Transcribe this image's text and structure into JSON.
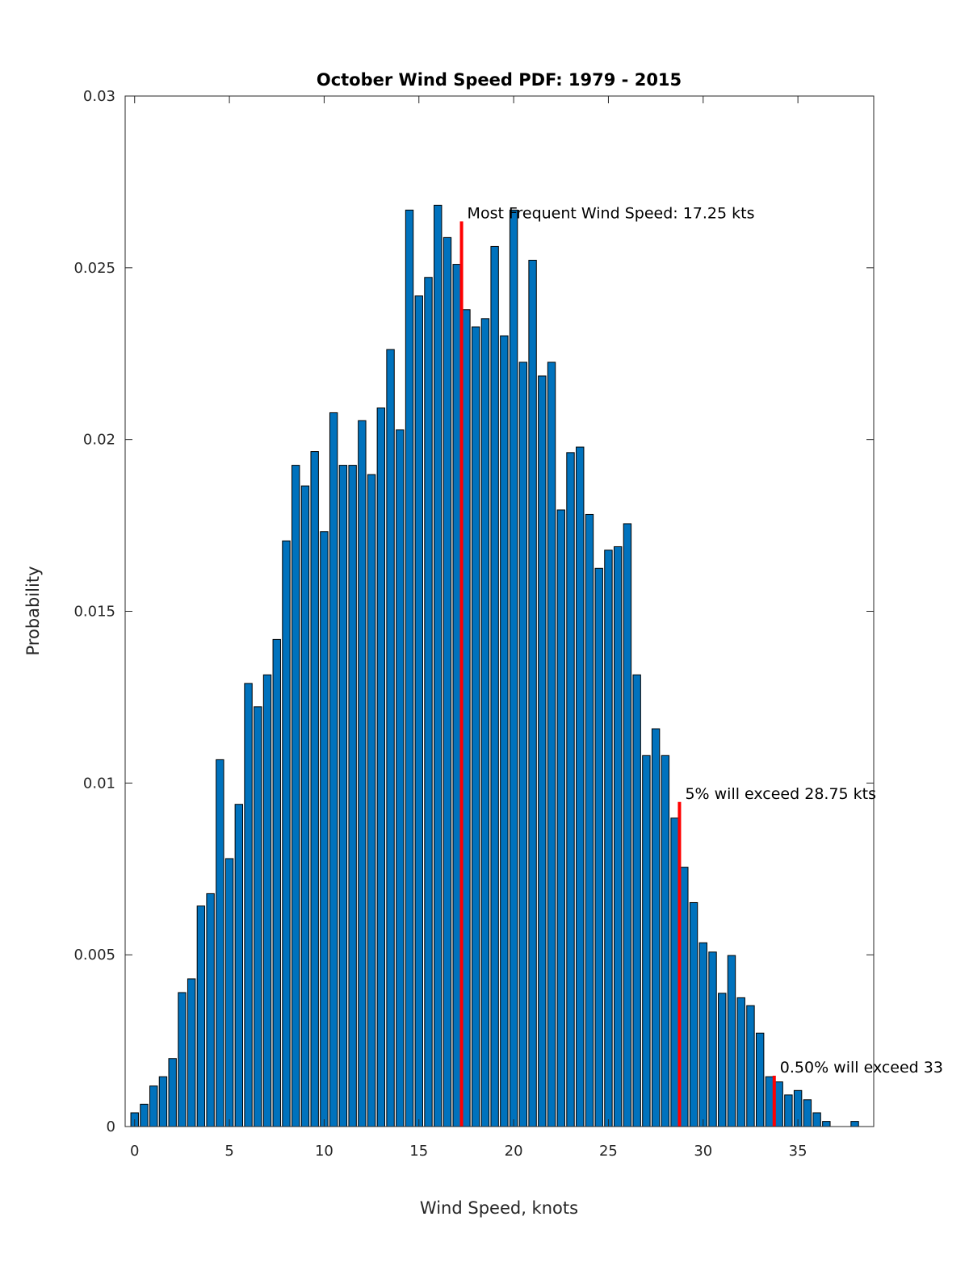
{
  "chart_data": {
    "type": "bar",
    "title": "October Wind Speed PDF: 1979 - 2015",
    "xlabel": "Wind Speed, knots",
    "ylabel": "Probability",
    "xlim": [
      -0.5,
      39
    ],
    "ylim": [
      0,
      0.03
    ],
    "xticks": [
      0,
      5,
      10,
      15,
      20,
      25,
      30,
      35
    ],
    "yticks": [
      0,
      0.005,
      0.01,
      0.015,
      0.02,
      0.025,
      0.03
    ],
    "ytick_labels": [
      "0",
      "0.005",
      "0.01",
      "0.015",
      "0.02",
      "0.025",
      "0.03"
    ],
    "grid": false,
    "bin_width": 0.5,
    "x": [
      0,
      0.5,
      1,
      1.5,
      2,
      2.5,
      3,
      3.5,
      4,
      4.5,
      5,
      5.5,
      6,
      6.5,
      7,
      7.5,
      8,
      8.5,
      9,
      9.5,
      10,
      10.5,
      11,
      11.5,
      12,
      12.5,
      13,
      13.5,
      14,
      14.5,
      15,
      15.5,
      16,
      16.5,
      17,
      17.5,
      18,
      18.5,
      19,
      19.5,
      20,
      20.5,
      21,
      21.5,
      22,
      22.5,
      23,
      23.5,
      24,
      24.5,
      25,
      25.5,
      26,
      26.5,
      27,
      27.5,
      28,
      28.5,
      29,
      29.5,
      30,
      30.5,
      31,
      31.5,
      32,
      32.5,
      33,
      33.5,
      34,
      34.5,
      35,
      35.5,
      36,
      36.5,
      37,
      37.5,
      38
    ],
    "values": [
      0.0004,
      0.00065,
      0.00118,
      0.00145,
      0.00198,
      0.0039,
      0.0043,
      0.00642,
      0.00678,
      0.01068,
      0.0078,
      0.00938,
      0.0129,
      0.01222,
      0.01315,
      0.01418,
      0.01705,
      0.01925,
      0.01865,
      0.01965,
      0.01732,
      0.02078,
      0.01925,
      0.01925,
      0.02055,
      0.01898,
      0.02092,
      0.02262,
      0.02028,
      0.02668,
      0.02418,
      0.02472,
      0.02682,
      0.02588,
      0.0251,
      0.02378,
      0.02328,
      0.02352,
      0.02562,
      0.02302,
      0.02668,
      0.02225,
      0.02522,
      0.02185,
      0.02225,
      0.01795,
      0.01962,
      0.01978,
      0.01782,
      0.01625,
      0.01678,
      0.01688,
      0.01755,
      0.01315,
      0.0108,
      0.01158,
      0.0108,
      0.00898,
      0.00755,
      0.00652,
      0.00535,
      0.00508,
      0.00388,
      0.00498,
      0.00375,
      0.00352,
      0.00272,
      0.00145,
      0.0013,
      0.00092,
      0.00105,
      0.00078,
      0.0004,
      0.00015,
      0,
      0,
      0.00015
    ],
    "markers": [
      {
        "x": 17.25,
        "y": 0.02635,
        "label": "Most Frequent Wind Speed: 17.25 kts"
      },
      {
        "x": 28.75,
        "y": 0.00945,
        "label": "5% will exceed 28.75 kts"
      },
      {
        "x": 33.75,
        "y": 0.00148,
        "label": "0.50% will exceed 33"
      }
    ],
    "colors": {
      "bar": "#0072BD",
      "marker": "#FF0000"
    }
  }
}
